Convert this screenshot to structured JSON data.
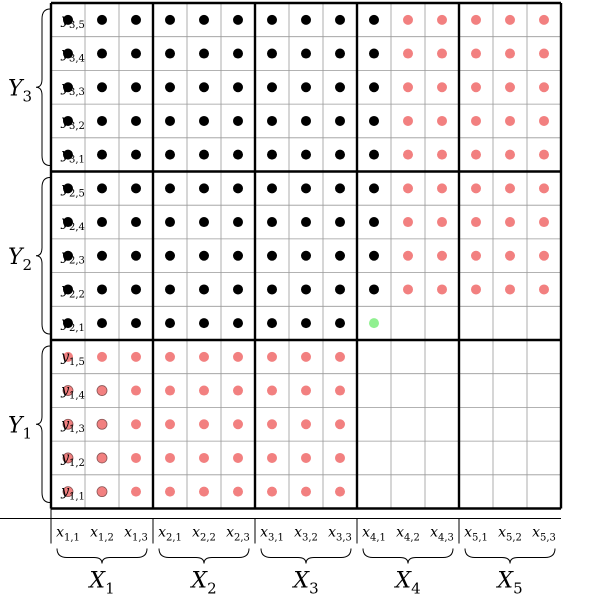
{
  "colors": {
    "filled": "#000000",
    "highlight": "#f28080",
    "target": "#90f090",
    "grid_thin": "#999999",
    "grid_thick": "#000000"
  },
  "grid": {
    "columns": 15,
    "rows": 15,
    "column_group_size": 3,
    "row_group_size": 5
  },
  "x_groups": [
    {
      "label": "X",
      "sub": "1",
      "ticks": [
        {
          "b": "x",
          "s": "1,1"
        },
        {
          "b": "x",
          "s": "1,2"
        },
        {
          "b": "x",
          "s": "1,3"
        }
      ]
    },
    {
      "label": "X",
      "sub": "2",
      "ticks": [
        {
          "b": "x",
          "s": "2,1"
        },
        {
          "b": "x",
          "s": "2,2"
        },
        {
          "b": "x",
          "s": "2,3"
        }
      ]
    },
    {
      "label": "X",
      "sub": "3",
      "ticks": [
        {
          "b": "x",
          "s": "3,1"
        },
        {
          "b": "x",
          "s": "3,2"
        },
        {
          "b": "x",
          "s": "3,3"
        }
      ]
    },
    {
      "label": "X",
      "sub": "4",
      "ticks": [
        {
          "b": "x",
          "s": "4,1"
        },
        {
          "b": "x",
          "s": "4,2"
        },
        {
          "b": "x",
          "s": "4,3"
        }
      ]
    },
    {
      "label": "X",
      "sub": "5",
      "ticks": [
        {
          "b": "x",
          "s": "5,1"
        },
        {
          "b": "x",
          "s": "5,2"
        },
        {
          "b": "x",
          "s": "5,3"
        }
      ]
    }
  ],
  "y_groups_top_to_bottom": [
    {
      "label": "Y",
      "sub": "3",
      "ticks": [
        {
          "b": "y",
          "s": "3,5"
        },
        {
          "b": "y",
          "s": "3,4"
        },
        {
          "b": "y",
          "s": "3,3"
        },
        {
          "b": "y",
          "s": "3,2"
        },
        {
          "b": "y",
          "s": "3,1"
        }
      ]
    },
    {
      "label": "Y",
      "sub": "2",
      "ticks": [
        {
          "b": "y",
          "s": "2,5"
        },
        {
          "b": "y",
          "s": "2,4"
        },
        {
          "b": "y",
          "s": "2,3"
        },
        {
          "b": "y",
          "s": "2,2"
        },
        {
          "b": "y",
          "s": "2,1"
        }
      ]
    },
    {
      "label": "Y",
      "sub": "1",
      "ticks": [
        {
          "b": "y",
          "s": "1,5"
        },
        {
          "b": "y",
          "s": "1,4"
        },
        {
          "b": "y",
          "s": "1,3"
        },
        {
          "b": "y",
          "s": "1,2"
        },
        {
          "b": "y",
          "s": "1,1"
        }
      ]
    }
  ],
  "cell_legend": {
    "B": "black dot",
    "R": "red dot",
    "r": "red dot with outline",
    "G": "green dot",
    ".": "empty"
  },
  "cells_top_to_bottom": [
    "BBBBBBBBBBRRRRR",
    "BBBBBBBBBBRRRRR",
    "BBBBBBBBBBRRRRR",
    "BBBBBBBBBBRRRRR",
    "BBBBBBBBBBRRRRR",
    "BBBBBBBBBBRRRRR",
    "BBBBBBBBBBRRRRR",
    "BBBBBBBBBBRRRRR",
    "BBBBBBBBBBRRRRR",
    "BBBBBBBBBG.....",
    "RRRRRRRRR......",
    "rrRRRRRRR......",
    "rrRRRRRRR......",
    "rrRRRRRRR......",
    "rrRRRRRRR......"
  ]
}
